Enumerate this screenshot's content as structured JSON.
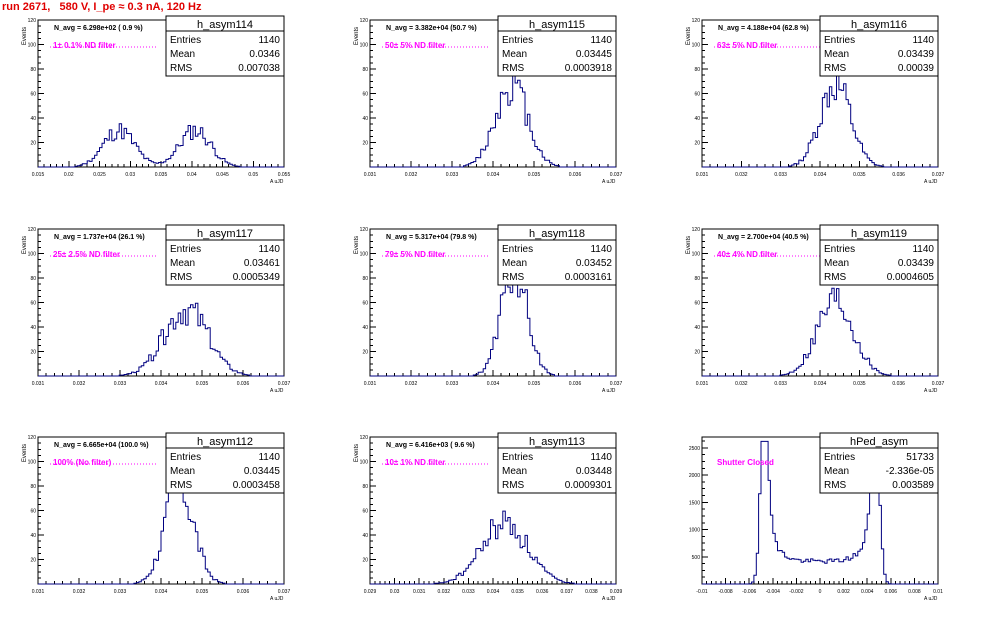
{
  "run_title": "run 2671,   580 V, I_pe ≈ 0.3 nA, 120 Hz",
  "colors": {
    "title": "#e00000",
    "histogram": "#000080",
    "filter_label": "#ff00ff"
  },
  "chart_data": [
    {
      "type": "histogram",
      "name": "h_asym114",
      "navg": "N_avg = 6.298e+02 ( 0.9 %)",
      "filter": "1± 0.1% ND filter",
      "stats": {
        "entries": "1140",
        "mean": "0.0346",
        "rms": "0.007038"
      },
      "ylabel": "Events",
      "xlabel": "A uJD",
      "xlim": [
        0.015,
        0.056
      ],
      "ylim": [
        0,
        120
      ],
      "yticks": [
        20,
        40,
        60,
        80,
        100,
        120
      ],
      "xticks": [
        "0.015",
        "0.02",
        "0.025",
        "0.03",
        "0.035",
        "0.04",
        "0.045",
        "0.05",
        "0.055"
      ],
      "peaks": [
        {
          "mu": 0.0285,
          "sigma": 0.0026,
          "a": 30
        },
        {
          "mu": 0.0412,
          "sigma": 0.0026,
          "a": 30
        }
      ],
      "seed": 11
    },
    {
      "type": "histogram",
      "name": "h_asym115",
      "navg": "N_avg = 3.382e+04 (50.7 %)",
      "filter": "50± 5% ND filter",
      "stats": {
        "entries": "1140",
        "mean": "0.03445",
        "rms": "0.0003918"
      },
      "ylabel": "Events",
      "xlabel": "A uJD",
      "xlim": [
        0.031,
        0.037
      ],
      "ylim": [
        0,
        120
      ],
      "yticks": [
        20,
        40,
        60,
        80,
        100,
        120
      ],
      "xticks": [
        "0.031",
        "0.032",
        "0.033",
        "0.034",
        "0.035",
        "0.036",
        "0.037"
      ],
      "peaks": [
        {
          "mu": 0.03445,
          "sigma": 0.00039,
          "a": 68
        }
      ],
      "seed": 12
    },
    {
      "type": "histogram",
      "name": "h_asym116",
      "navg": "N_avg = 4.188e+04 (62.8 %)",
      "filter": "63± 5% ND filter",
      "stats": {
        "entries": "1140",
        "mean": "0.03439",
        "rms": "0.00039"
      },
      "ylabel": "Events",
      "xlabel": "A uJD",
      "xlim": [
        0.031,
        0.037
      ],
      "ylim": [
        0,
        120
      ],
      "yticks": [
        20,
        40,
        60,
        80,
        100,
        120
      ],
      "xticks": [
        "0.031",
        "0.032",
        "0.033",
        "0.034",
        "0.035",
        "0.036",
        "0.037"
      ],
      "peaks": [
        {
          "mu": 0.03439,
          "sigma": 0.00039,
          "a": 68
        }
      ],
      "seed": 13
    },
    {
      "type": "histogram",
      "name": "h_asym117",
      "navg": "N_avg = 1.737e+04 (26.1 %)",
      "filter": "25± 2.5% ND filter",
      "stats": {
        "entries": "1140",
        "mean": "0.03461",
        "rms": "0.0005349"
      },
      "ylabel": "Events",
      "xlabel": "A uJD",
      "xlim": [
        0.031,
        0.037
      ],
      "ylim": [
        0,
        120
      ],
      "yticks": [
        20,
        40,
        60,
        80,
        100,
        120
      ],
      "xticks": [
        "0.031",
        "0.032",
        "0.033",
        "0.034",
        "0.035",
        "0.036",
        "0.037"
      ],
      "peaks": [
        {
          "mu": 0.03461,
          "sigma": 0.00053,
          "a": 55
        }
      ],
      "seed": 14
    },
    {
      "type": "histogram",
      "name": "h_asym118",
      "navg": "N_avg = 5.317e+04 (79.8 %)",
      "filter": "79± 5% ND filter",
      "stats": {
        "entries": "1140",
        "mean": "0.03452",
        "rms": "0.0003161"
      },
      "ylabel": "Events",
      "xlabel": "A uJD",
      "xlim": [
        0.031,
        0.037
      ],
      "ylim": [
        0,
        120
      ],
      "yticks": [
        20,
        40,
        60,
        80,
        100,
        120
      ],
      "xticks": [
        "0.031",
        "0.032",
        "0.033",
        "0.034",
        "0.035",
        "0.036",
        "0.037"
      ],
      "peaks": [
        {
          "mu": 0.03452,
          "sigma": 0.00032,
          "a": 85
        }
      ],
      "seed": 15
    },
    {
      "type": "histogram",
      "name": "h_asym119",
      "navg": "N_avg = 2.700e+04 (40.5 %)",
      "filter": "40± 4% ND filter",
      "stats": {
        "entries": "1140",
        "mean": "0.03439",
        "rms": "0.0004605"
      },
      "ylabel": "Events",
      "xlabel": "A uJD",
      "xlim": [
        0.031,
        0.037
      ],
      "ylim": [
        0,
        120
      ],
      "yticks": [
        20,
        40,
        60,
        80,
        100,
        120
      ],
      "xticks": [
        "0.031",
        "0.032",
        "0.033",
        "0.034",
        "0.035",
        "0.036",
        "0.037"
      ],
      "peaks": [
        {
          "mu": 0.03439,
          "sigma": 0.00046,
          "a": 62
        }
      ],
      "seed": 16
    },
    {
      "type": "histogram",
      "name": "h_asym112",
      "navg": "N_avg = 6.665e+04 (100.0 %)",
      "filter": "100% (No filter)",
      "stats": {
        "entries": "1140",
        "mean": "0.03445",
        "rms": "0.0003458"
      },
      "ylabel": "Events",
      "xlabel": "A uJD",
      "xlim": [
        0.031,
        0.037
      ],
      "ylim": [
        0,
        120
      ],
      "yticks": [
        20,
        40,
        60,
        80,
        100,
        120
      ],
      "xticks": [
        "0.031",
        "0.032",
        "0.033",
        "0.034",
        "0.035",
        "0.036",
        "0.037"
      ],
      "peaks": [
        {
          "mu": 0.03445,
          "sigma": 0.00035,
          "a": 80
        }
      ],
      "seed": 17
    },
    {
      "type": "histogram",
      "name": "h_asym113",
      "navg": "N_avg = 6.416e+03 ( 9.6 %)",
      "filter": "10± 1% ND filter",
      "stats": {
        "entries": "1140",
        "mean": "0.03448",
        "rms": "0.0009301"
      },
      "ylabel": "Events",
      "xlabel": "A uJD",
      "xlim": [
        0.029,
        0.039
      ],
      "ylim": [
        0,
        120
      ],
      "yticks": [
        20,
        40,
        60,
        80,
        100,
        120
      ],
      "xticks": [
        "0.029",
        "0.03",
        "0.031",
        "0.032",
        "0.033",
        "0.034",
        "0.035",
        "0.036",
        "0.037",
        "0.038",
        "0.039"
      ],
      "peaks": [
        {
          "mu": 0.03448,
          "sigma": 0.00093,
          "a": 50
        }
      ],
      "seed": 18
    },
    {
      "type": "histogram",
      "name": "hPed_asym",
      "navg": "",
      "filter": "Shutter Closed",
      "stats": {
        "entries": "51733",
        "mean": "-2.336e-05",
        "rms": "0.003589"
      },
      "ylabel": "",
      "xlabel": "A uJD",
      "xlim": [
        -0.01,
        0.01
      ],
      "ylim": [
        0,
        2700
      ],
      "yticks": [
        500,
        1000,
        1500,
        2000,
        2500
      ],
      "xticks": [
        "-0.01",
        "-0.008",
        "-0.006",
        "-0.004",
        "-0.002",
        "0",
        "0.002",
        "0.004",
        "0.006",
        "0.008",
        "0.01"
      ],
      "pedestal": true,
      "seed": 19
    }
  ]
}
